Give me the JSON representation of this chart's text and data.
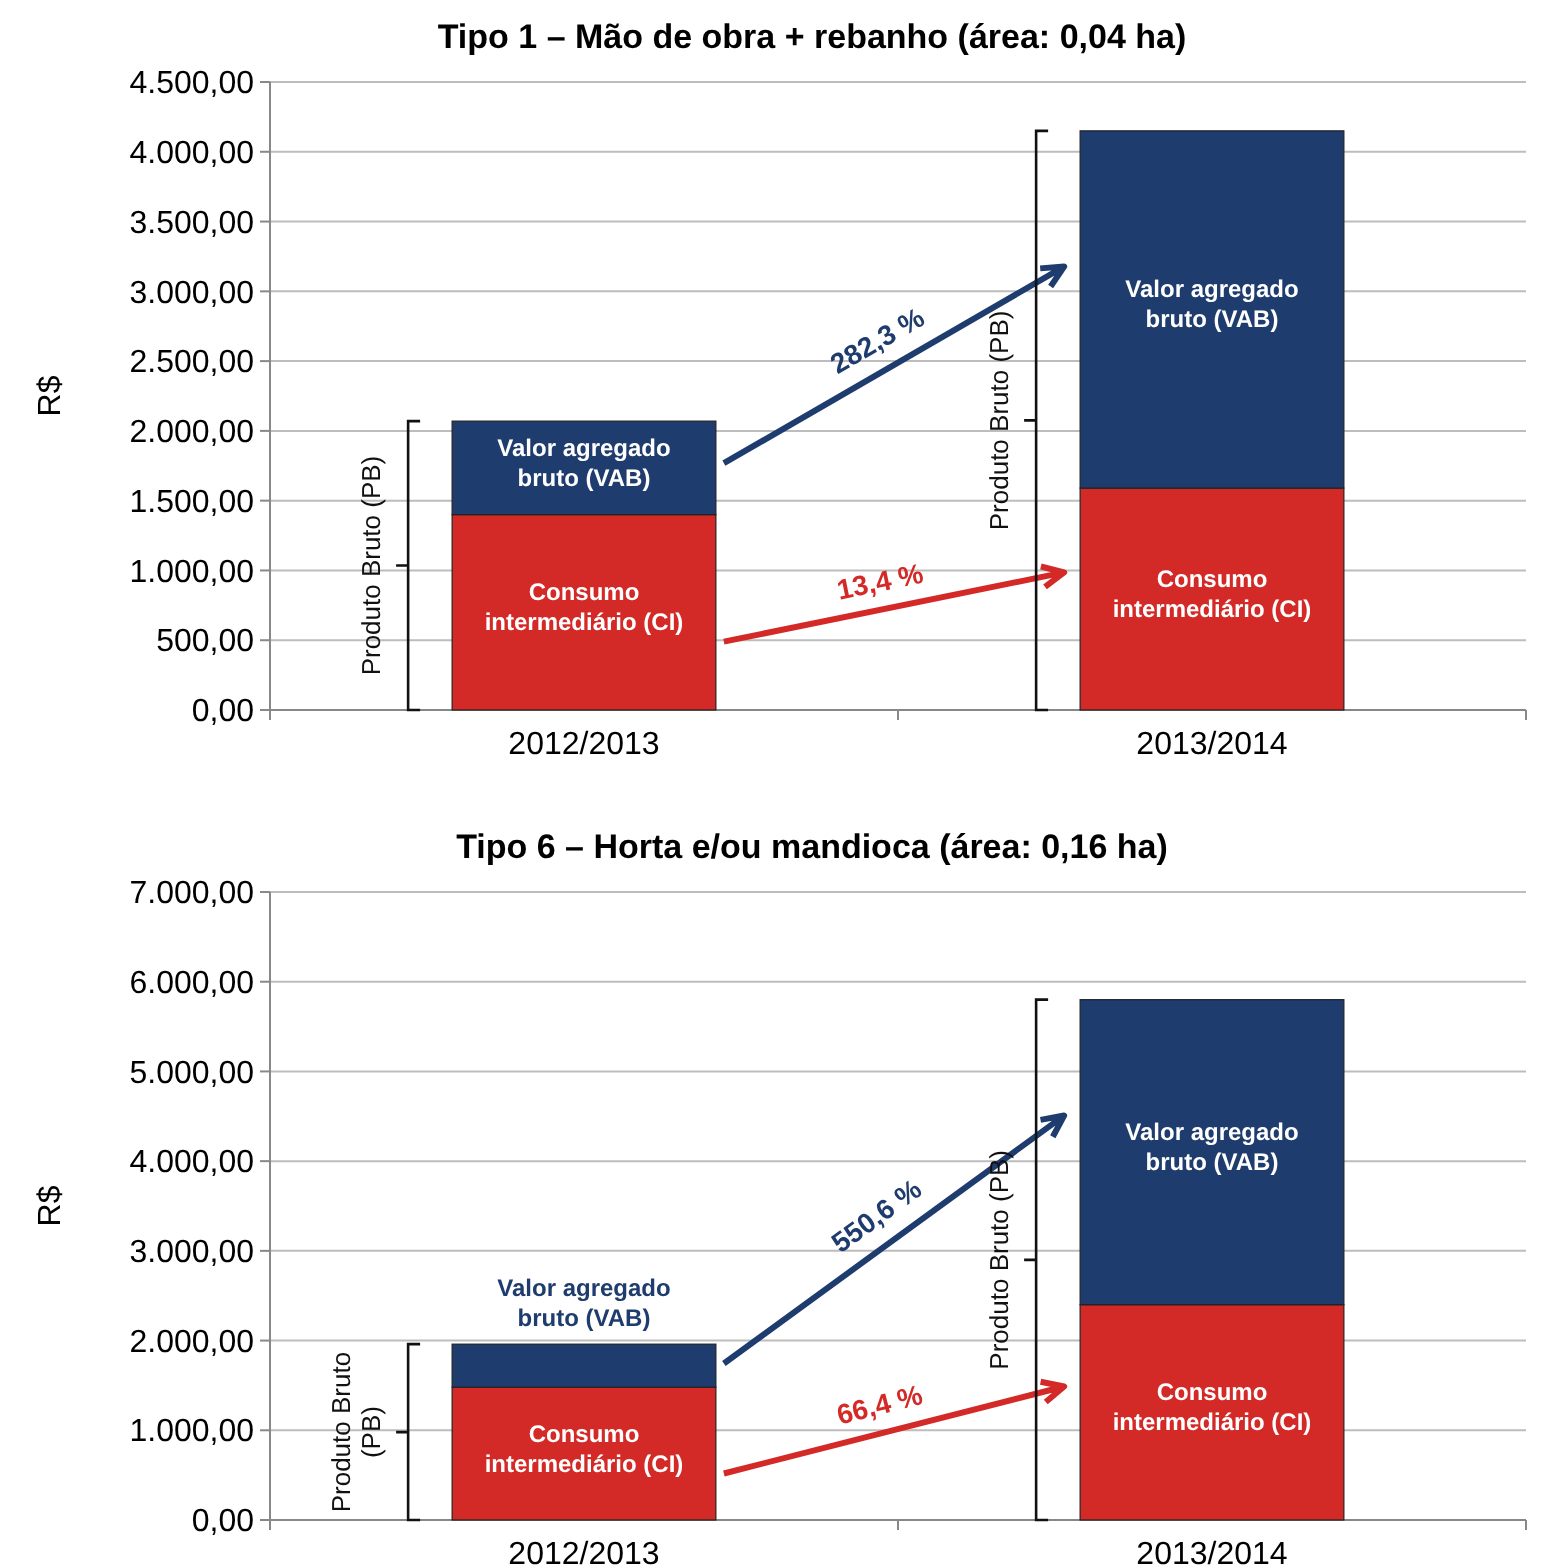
{
  "chart_data": [
    {
      "type": "bar",
      "title": "Tipo 1 – Mão de obra + rebanho (área: 0,04 ha)",
      "ylabel": "R$",
      "categories": [
        "2012/2013",
        "2013/2014"
      ],
      "stacked": true,
      "grid": "y",
      "series": [
        {
          "name": "Consumo intermediário (CI)",
          "color": "#d42a27",
          "values": [
            1400,
            1590
          ]
        },
        {
          "name": "Valor agregado bruto (VAB)",
          "color": "#1e3c6e",
          "values": [
            670,
            2560
          ]
        }
      ],
      "ylim": [
        0,
        4500
      ],
      "yticks": [
        {
          "value": 0,
          "label": "0,00"
        },
        {
          "value": 500,
          "label": "500,00"
        },
        {
          "value": 1000,
          "label": "1.000,00"
        },
        {
          "value": 1500,
          "label": "1.500,00"
        },
        {
          "value": 2000,
          "label": "2.000,00"
        },
        {
          "value": 2500,
          "label": "2.500,00"
        },
        {
          "value": 3000,
          "label": "3.000,00"
        },
        {
          "value": 3500,
          "label": "3.500,00"
        },
        {
          "value": 4000,
          "label": "4.000,00"
        },
        {
          "value": 4500,
          "label": "4.500,00"
        }
      ],
      "annotations": [
        "282,3 %",
        "13,4 %",
        "Produto Bruto (PB)",
        "Produto Bruto (PB)"
      ]
    },
    {
      "type": "bar",
      "title": "Tipo 6 – Horta e/ou mandioca (área: 0,16 ha)",
      "ylabel": "R$",
      "categories": [
        "2012/2013",
        "2013/2014"
      ],
      "stacked": true,
      "grid": "y",
      "series": [
        {
          "name": "Consumo intermediário (CI)",
          "color": "#d42a27",
          "values": [
            1480,
            2400
          ]
        },
        {
          "name": "Valor agregado bruto (VAB)",
          "color": "#1e3c6e",
          "values": [
            480,
            3400
          ]
        }
      ],
      "ylim": [
        0,
        7000
      ],
      "yticks": [
        {
          "value": 0,
          "label": "0,00"
        },
        {
          "value": 1000,
          "label": "1.000,00"
        },
        {
          "value": 2000,
          "label": "2.000,00"
        },
        {
          "value": 3000,
          "label": "3.000,00"
        },
        {
          "value": 4000,
          "label": "4.000,00"
        },
        {
          "value": 5000,
          "label": "5.000,00"
        },
        {
          "value": 6000,
          "label": "6.000,00"
        },
        {
          "value": 7000,
          "label": "7.000,00"
        }
      ],
      "annotations": [
        "550,6 %",
        "66,4 %",
        "Produto Bruto (PB)",
        "Produto Bruto (PB)"
      ]
    }
  ]
}
